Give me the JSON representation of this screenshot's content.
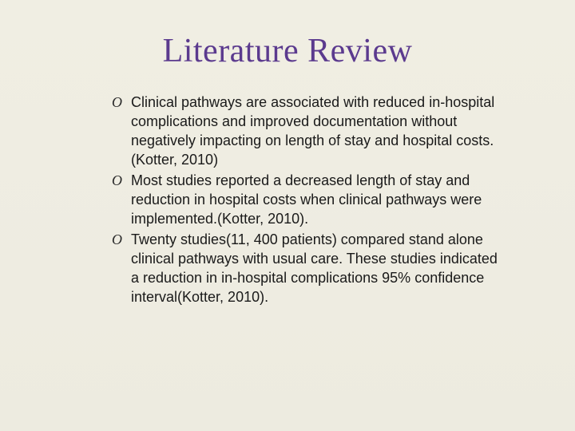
{
  "slide": {
    "title": "Literature Review",
    "title_color": "#5b3a8e",
    "title_fontsize": 42,
    "title_fontfamily": "Georgia, serif",
    "background_color": "#eeece1",
    "bullets": [
      {
        "marker": "O",
        "text": "Clinical pathways are associated with reduced in-hospital complications and improved documentation without negatively impacting on length of stay and hospital costs. (Kotter, 2010)"
      },
      {
        "marker": "O",
        "text": "Most studies reported a decreased length of stay and reduction in hospital costs when clinical pathways were implemented.(Kotter, 2010)."
      },
      {
        "marker": "O",
        "text": "Twenty studies(11, 400 patients) compared stand alone clinical pathways with usual care. These studies indicated a reduction in in-hospital complications 95% confidence interval(Kotter, 2010)."
      }
    ],
    "bullet_fontsize": 18,
    "bullet_fontfamily": "Arial, sans-serif",
    "bullet_marker_fontfamily": "Georgia, serif",
    "text_color": "#1a1a1a"
  }
}
